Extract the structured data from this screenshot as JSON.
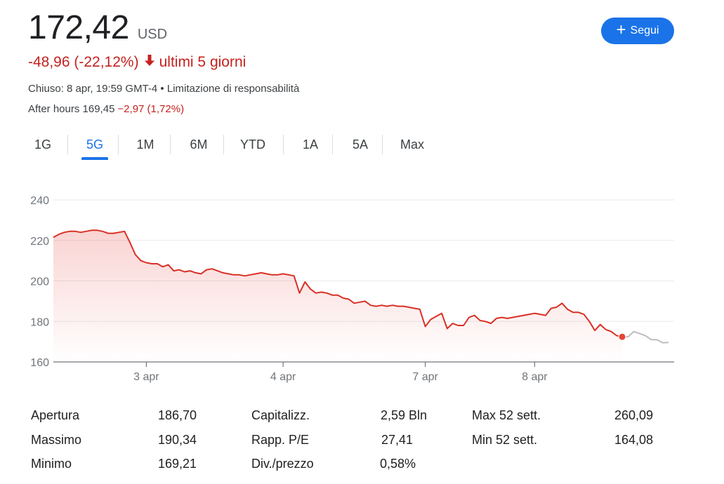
{
  "quote": {
    "price": "172,42",
    "currency": "USD",
    "change": "-48,96 (-22,12%)",
    "period": "ultimi 5 giorni",
    "closed_text": "Chiuso: 8 apr, 19:59 GMT-4 • Limitazione di responsabilità",
    "after_hours_label": "After hours 169,45",
    "after_hours_change": "−2,97 (1,72%)"
  },
  "follow_button": {
    "label": "Segui",
    "icon": "plus-icon"
  },
  "tabs": [
    "1G",
    "5G",
    "1M",
    "6M",
    "YTD",
    "1A",
    "5A",
    "Max"
  ],
  "active_tab": "5G",
  "colors": {
    "negative": "#c5221f",
    "accent": "#1a73e8",
    "line": "#d93025",
    "after_hours_line": "#bdbdbd"
  },
  "chart_data": {
    "type": "area",
    "title": "",
    "xlabel": "",
    "ylabel": "",
    "ylim": [
      160,
      240
    ],
    "yticks": [
      160,
      180,
      200,
      220,
      240
    ],
    "xticks": [
      "3 apr",
      "4 apr",
      "7 apr",
      "8 apr"
    ],
    "grid": true,
    "series": [
      {
        "values": [
          221.5,
          223,
          224,
          224.5,
          224.5,
          224,
          224.5,
          225,
          225,
          224.5,
          223.5,
          223.5,
          224,
          224.5,
          219,
          213,
          210,
          209,
          208.5,
          208.5,
          207,
          208,
          205,
          205.5,
          204.5,
          205,
          204,
          203.5,
          205.5,
          206,
          205,
          204,
          203.5,
          203,
          203,
          202.5,
          203,
          203.5,
          204,
          203.5,
          203,
          203,
          203.5,
          203,
          202.5,
          194,
          199.5,
          196,
          194,
          194.5,
          194,
          193,
          193,
          191.5,
          191,
          189,
          189.5,
          190,
          188,
          187.5,
          188,
          187.5,
          188,
          187.5,
          187.5,
          187,
          186.5,
          186,
          177.5,
          181,
          182.5,
          184,
          176.5,
          179,
          178,
          178,
          182,
          183,
          180.5,
          180,
          179,
          181.5,
          182,
          181.5,
          182,
          182.5,
          183,
          183.5,
          184,
          183.5,
          183,
          186.5,
          187,
          189,
          186,
          184.5,
          184.5,
          183.5,
          180,
          175.5,
          178.5,
          176,
          175,
          173,
          172.42
        ],
        "end_marker": 172.42
      },
      {
        "values": [
          172.42,
          172.4,
          175,
          174,
          173,
          171,
          171,
          169.5,
          169.6
        ],
        "after_hours": true
      }
    ]
  },
  "stats": [
    {
      "label": "Apertura",
      "value": "186,70"
    },
    {
      "label": "Massimo",
      "value": "190,34"
    },
    {
      "label": "Minimo",
      "value": "169,21"
    },
    {
      "label": "Capitalizz.",
      "value": "2,59 Bln"
    },
    {
      "label": "Rapp. P/E",
      "value": "27,41"
    },
    {
      "label": "Div./prezzo",
      "value": "0,58%"
    },
    {
      "label": "Max 52 sett.",
      "value": "260,09"
    },
    {
      "label": "Min 52 sett.",
      "value": "164,08"
    }
  ]
}
